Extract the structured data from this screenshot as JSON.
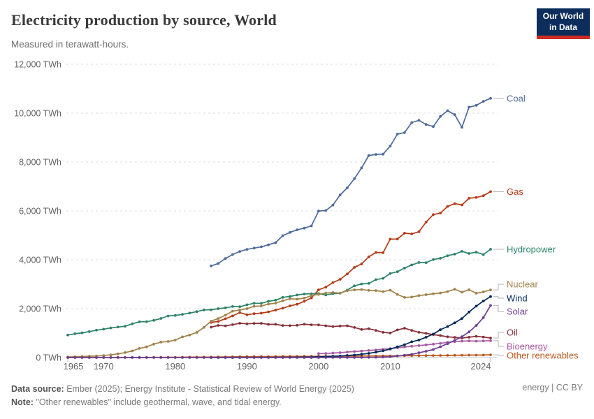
{
  "header": {
    "title": "Electricity production by source, World",
    "subtitle": "Measured in terawatt-hours.",
    "logo": {
      "line1": "Our World",
      "line2": "in Data",
      "bg_color": "#0d2e5c",
      "stripe_color": "#cf2d23"
    }
  },
  "footer": {
    "datasource_label": "Data source:",
    "datasource_text": " Ember (2025); Energy Institute - Statistical Review of World Energy (2025)",
    "note_label": "Note:",
    "note_text": " \"Other renewables\" include geothermal, wave, and tidal energy.",
    "license": "energy | CC BY"
  },
  "chart_data": {
    "type": "line",
    "title": "Electricity production by source, World",
    "xlabel": "",
    "ylabel": "TWh",
    "xlim": [
      1965,
      2024
    ],
    "ylim": [
      0,
      12000
    ],
    "grid": "horizontal-dashed",
    "legend_position": "right-edge-labels",
    "x_ticks": [
      "1965",
      "1970",
      "1980",
      "1990",
      "2000",
      "2010",
      "2024"
    ],
    "y_ticks": [
      {
        "value": 0,
        "label": "0 TWh"
      },
      {
        "value": 2000,
        "label": "2,000 TWh"
      },
      {
        "value": 4000,
        "label": "4,000 TWh"
      },
      {
        "value": 6000,
        "label": "6,000 TWh"
      },
      {
        "value": 8000,
        "label": "8,000 TWh"
      },
      {
        "value": 10000,
        "label": "10,000 TWh"
      },
      {
        "value": 12000,
        "label": "12,000 TWh"
      }
    ],
    "series": [
      {
        "name": "Coal",
        "color": "#4C6A9C",
        "start_year": 1985,
        "values": [
          3748,
          3849,
          4052,
          4213,
          4339,
          4425,
          4478,
          4531,
          4615,
          4704,
          4985,
          5119,
          5226,
          5295,
          5387,
          5995,
          6013,
          6239,
          6653,
          6944,
          7321,
          7760,
          8265,
          8311,
          8323,
          8652,
          9144,
          9204,
          9613,
          9707,
          9538,
          9451,
          9863,
          10100,
          9936,
          9421,
          10245,
          10317,
          10480,
          10605
        ]
      },
      {
        "name": "Gas",
        "color": "#B53A17",
        "start_year": 1985,
        "values": [
          1439,
          1477,
          1588,
          1704,
          1839,
          1752,
          1795,
          1816,
          1869,
          1943,
          2020,
          2113,
          2180,
          2300,
          2441,
          2771,
          2880,
          3070,
          3200,
          3420,
          3688,
          3830,
          4120,
          4300,
          4290,
          4845,
          4850,
          5090,
          5060,
          5148,
          5543,
          5850,
          5910,
          6183,
          6298,
          6244,
          6518,
          6549,
          6622,
          6788
        ]
      },
      {
        "name": "Hydropower",
        "color": "#2C8465",
        "start_year": 1965,
        "values": [
          920,
          975,
          1010,
          1060,
          1120,
          1160,
          1210,
          1250,
          1280,
          1380,
          1462,
          1470,
          1520,
          1600,
          1700,
          1723,
          1770,
          1820,
          1880,
          1950,
          1954,
          2000,
          2030,
          2090,
          2080,
          2159,
          2220,
          2220,
          2300,
          2350,
          2462,
          2500,
          2560,
          2600,
          2610,
          2619,
          2560,
          2610,
          2630,
          2760,
          2933,
          3010,
          3030,
          3190,
          3240,
          3437,
          3510,
          3660,
          3790,
          3890,
          3882,
          4010,
          4060,
          4170,
          4230,
          4347,
          4257,
          4311,
          4210,
          4430
        ]
      },
      {
        "name": "Nuclear",
        "color": "#A1824A",
        "start_year": 1965,
        "values": [
          26,
          32,
          42,
          53,
          62,
          79,
          111,
          152,
          203,
          272,
          374,
          438,
          548,
          630,
          658,
          713,
          845,
          920,
          1029,
          1233,
          1489,
          1597,
          1733,
          1898,
          1945,
          2000,
          2096,
          2109,
          2185,
          2225,
          2322,
          2406,
          2390,
          2431,
          2530,
          2582,
          2637,
          2660,
          2635,
          2738,
          2768,
          2784,
          2748,
          2739,
          2697,
          2756,
          2584,
          2461,
          2478,
          2535,
          2571,
          2612,
          2639,
          2701,
          2796,
          2674,
          2775,
          2632,
          2686,
          2768
        ]
      },
      {
        "name": "Oil",
        "color": "#883039",
        "start_year": 1985,
        "values": [
          1244,
          1313,
          1297,
          1347,
          1403,
          1380,
          1397,
          1399,
          1357,
          1361,
          1310,
          1306,
          1320,
          1367,
          1340,
          1334,
          1300,
          1270,
          1290,
          1300,
          1230,
          1150,
          1180,
          1110,
          1030,
          1003,
          1130,
          1200,
          1110,
          1030,
          990,
          940,
          900,
          850,
          825,
          800,
          830,
          870,
          840,
          800
        ]
      },
      {
        "name": "Other renewables",
        "color": "#BB5A1E",
        "start_year": 1965,
        "values": [
          2.6,
          3,
          3.2,
          3.5,
          4,
          4.5,
          5,
          5.5,
          6,
          6,
          6.5,
          7,
          8,
          9,
          10,
          12,
          14,
          16,
          18,
          19,
          21,
          24,
          26,
          28,
          32,
          36,
          38,
          39,
          41,
          42,
          43,
          45,
          47,
          49,
          50,
          52,
          53,
          54,
          55,
          56,
          58,
          60,
          62,
          64,
          66,
          68,
          71,
          74,
          77,
          79,
          81,
          84,
          87,
          90,
          94,
          97,
          99,
          101,
          104,
          110
        ]
      },
      {
        "name": "Bioenergy",
        "color": "#A85BA4",
        "start_year": 2000,
        "values": [
          164,
          170,
          185,
          200,
          227,
          249,
          267,
          290,
          311,
          340,
          370,
          400,
          430,
          462,
          490,
          518,
          550,
          580,
          625,
          652,
          672,
          680,
          672,
          680,
          690
        ]
      },
      {
        "name": "Wind",
        "color": "#00295B",
        "start_year": 1985,
        "values": [
          0,
          0,
          0,
          1,
          2,
          4,
          4,
          5,
          6,
          7,
          8,
          9,
          12,
          16,
          21,
          31,
          38,
          52,
          63,
          85,
          104,
          133,
          171,
          221,
          276,
          346,
          437,
          526,
          646,
          717,
          831,
          960,
          1140,
          1270,
          1420,
          1596,
          1862,
          2104,
          2310,
          2494
        ]
      },
      {
        "name": "Solar",
        "color": "#6D3E91",
        "start_year": 1965,
        "values": [
          0,
          0,
          0,
          0,
          0,
          0,
          0,
          0,
          0,
          0,
          0,
          0,
          0,
          0,
          0,
          0,
          0,
          0,
          0,
          0,
          0,
          0,
          0,
          0,
          0,
          0,
          0,
          0,
          0,
          0,
          0,
          0,
          0,
          0,
          0,
          1,
          1,
          2,
          2,
          3,
          4,
          5,
          7,
          12,
          20,
          32,
          63,
          96,
          132,
          197,
          256,
          328,
          444,
          570,
          704,
          853,
          1048,
          1310,
          1631,
          2131
        ]
      }
    ]
  }
}
